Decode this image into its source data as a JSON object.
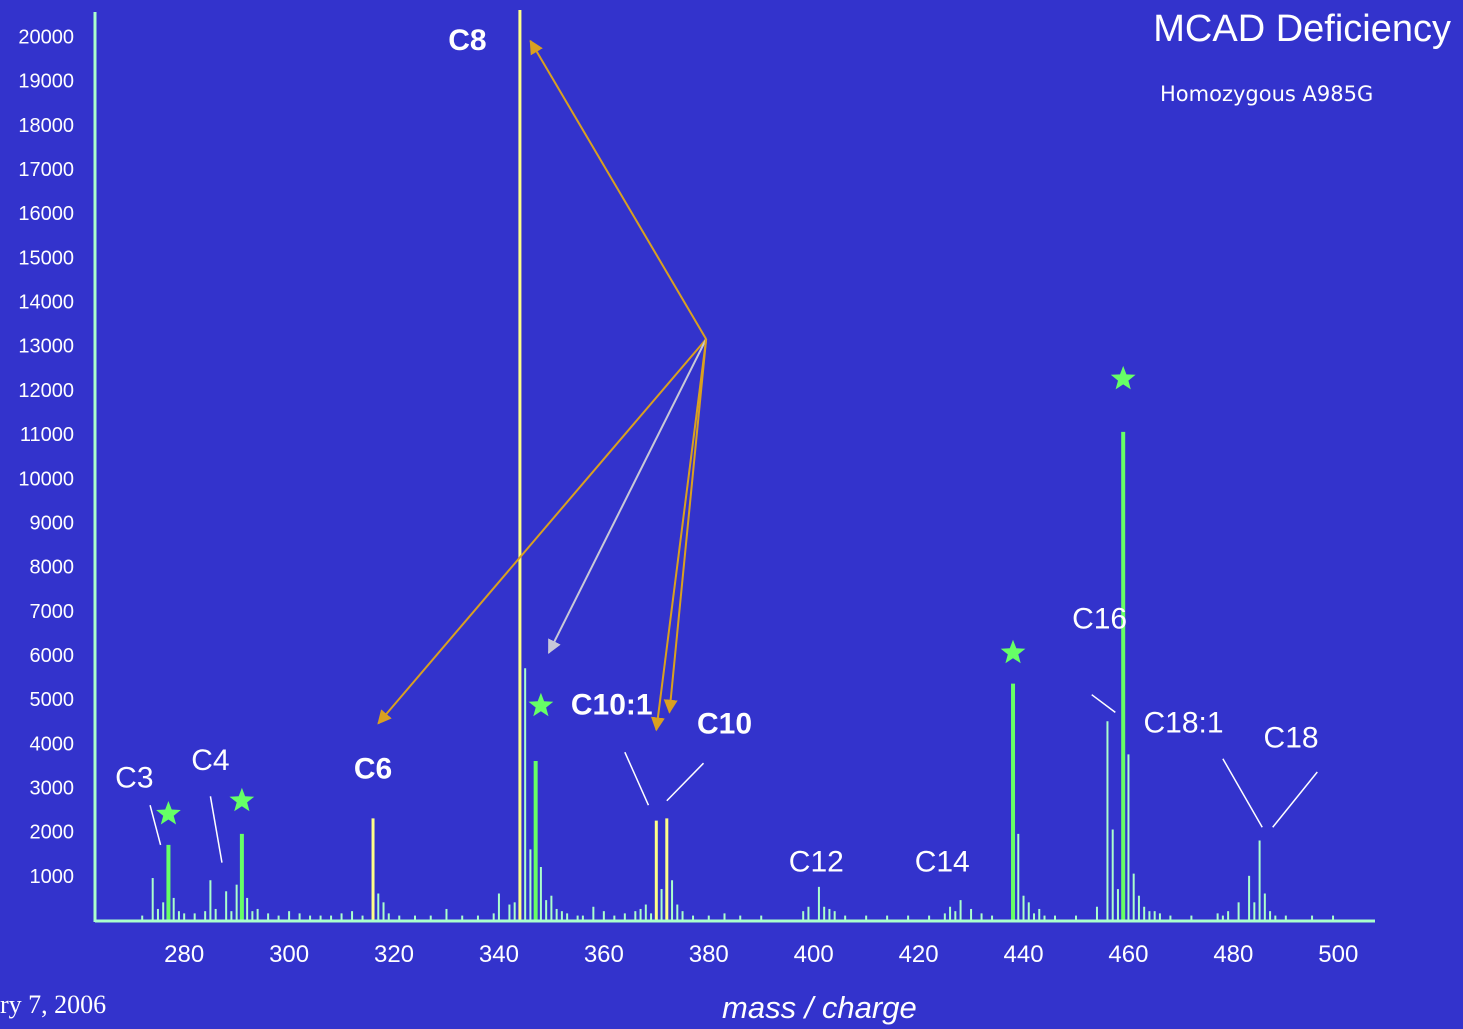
{
  "title": "MCAD Deficiency",
  "subtitle": "Homozygous A985G",
  "footer_text": "ry 7, 2006",
  "colors": {
    "background": "#3333cc",
    "axis": "#aaffcc",
    "baseline_peaks": "#aaffcc",
    "standard_peaks": "#66ff66",
    "acylcarnitine_peaks": "#ffff88",
    "arrow_orange": "#d9a020",
    "arrow_gray": "#c8c8d8",
    "star": "#66ff66"
  },
  "chart_data": {
    "type": "bar",
    "xlabel": "mass / charge",
    "ylabel": "",
    "xlim": [
      263,
      507
    ],
    "ylim": [
      0,
      20600
    ],
    "x_ticks": [
      280,
      300,
      320,
      340,
      360,
      380,
      400,
      420,
      440,
      460,
      480,
      500
    ],
    "y_ticks": [
      1000,
      2000,
      3000,
      4000,
      5000,
      6000,
      7000,
      8000,
      9000,
      10000,
      11000,
      12000,
      13000,
      14000,
      15000,
      16000,
      17000,
      18000,
      19000,
      20000
    ],
    "series": [
      {
        "kind": "acylcarnitine",
        "peaks": [
          {
            "mz": 316,
            "intensity": 2300
          },
          {
            "mz": 344,
            "intensity": 20600
          },
          {
            "mz": 370,
            "intensity": 2250
          },
          {
            "mz": 372,
            "intensity": 2300
          }
        ]
      },
      {
        "kind": "standard",
        "peaks": [
          {
            "mz": 277,
            "intensity": 1700
          },
          {
            "mz": 291,
            "intensity": 1950
          },
          {
            "mz": 347,
            "intensity": 3600
          },
          {
            "mz": 438,
            "intensity": 5350
          },
          {
            "mz": 459,
            "intensity": 11050
          }
        ]
      },
      {
        "kind": "baseline",
        "peaks": [
          {
            "mz": 272,
            "intensity": 100
          },
          {
            "mz": 274,
            "intensity": 950
          },
          {
            "mz": 275,
            "intensity": 250
          },
          {
            "mz": 276,
            "intensity": 400
          },
          {
            "mz": 278,
            "intensity": 500
          },
          {
            "mz": 279,
            "intensity": 200
          },
          {
            "mz": 280,
            "intensity": 150
          },
          {
            "mz": 282,
            "intensity": 150
          },
          {
            "mz": 284,
            "intensity": 200
          },
          {
            "mz": 285,
            "intensity": 900
          },
          {
            "mz": 286,
            "intensity": 250
          },
          {
            "mz": 288,
            "intensity": 650
          },
          {
            "mz": 289,
            "intensity": 200
          },
          {
            "mz": 290,
            "intensity": 800
          },
          {
            "mz": 292,
            "intensity": 500
          },
          {
            "mz": 293,
            "intensity": 200
          },
          {
            "mz": 294,
            "intensity": 250
          },
          {
            "mz": 296,
            "intensity": 150
          },
          {
            "mz": 298,
            "intensity": 100
          },
          {
            "mz": 300,
            "intensity": 200
          },
          {
            "mz": 302,
            "intensity": 150
          },
          {
            "mz": 304,
            "intensity": 100
          },
          {
            "mz": 306,
            "intensity": 100
          },
          {
            "mz": 308,
            "intensity": 100
          },
          {
            "mz": 310,
            "intensity": 150
          },
          {
            "mz": 312,
            "intensity": 200
          },
          {
            "mz": 314,
            "intensity": 100
          },
          {
            "mz": 317,
            "intensity": 600
          },
          {
            "mz": 318,
            "intensity": 400
          },
          {
            "mz": 319,
            "intensity": 150
          },
          {
            "mz": 321,
            "intensity": 100
          },
          {
            "mz": 324,
            "intensity": 100
          },
          {
            "mz": 327,
            "intensity": 100
          },
          {
            "mz": 330,
            "intensity": 250
          },
          {
            "mz": 333,
            "intensity": 100
          },
          {
            "mz": 336,
            "intensity": 100
          },
          {
            "mz": 339,
            "intensity": 150
          },
          {
            "mz": 340,
            "intensity": 600
          },
          {
            "mz": 342,
            "intensity": 350
          },
          {
            "mz": 343,
            "intensity": 400
          },
          {
            "mz": 345,
            "intensity": 5700
          },
          {
            "mz": 346,
            "intensity": 1600
          },
          {
            "mz": 348,
            "intensity": 1200
          },
          {
            "mz": 349,
            "intensity": 450
          },
          {
            "mz": 350,
            "intensity": 550
          },
          {
            "mz": 351,
            "intensity": 250
          },
          {
            "mz": 352,
            "intensity": 200
          },
          {
            "mz": 353,
            "intensity": 150
          },
          {
            "mz": 355,
            "intensity": 100
          },
          {
            "mz": 356,
            "intensity": 100
          },
          {
            "mz": 358,
            "intensity": 300
          },
          {
            "mz": 360,
            "intensity": 200
          },
          {
            "mz": 362,
            "intensity": 100
          },
          {
            "mz": 364,
            "intensity": 150
          },
          {
            "mz": 366,
            "intensity": 200
          },
          {
            "mz": 367,
            "intensity": 250
          },
          {
            "mz": 368,
            "intensity": 350
          },
          {
            "mz": 369,
            "intensity": 150
          },
          {
            "mz": 371,
            "intensity": 700
          },
          {
            "mz": 373,
            "intensity": 900
          },
          {
            "mz": 374,
            "intensity": 350
          },
          {
            "mz": 375,
            "intensity": 200
          },
          {
            "mz": 377,
            "intensity": 100
          },
          {
            "mz": 380,
            "intensity": 100
          },
          {
            "mz": 383,
            "intensity": 150
          },
          {
            "mz": 386,
            "intensity": 100
          },
          {
            "mz": 390,
            "intensity": 100
          },
          {
            "mz": 398,
            "intensity": 200
          },
          {
            "mz": 399,
            "intensity": 300
          },
          {
            "mz": 401,
            "intensity": 750
          },
          {
            "mz": 402,
            "intensity": 300
          },
          {
            "mz": 403,
            "intensity": 250
          },
          {
            "mz": 404,
            "intensity": 200
          },
          {
            "mz": 406,
            "intensity": 100
          },
          {
            "mz": 410,
            "intensity": 100
          },
          {
            "mz": 414,
            "intensity": 100
          },
          {
            "mz": 418,
            "intensity": 100
          },
          {
            "mz": 422,
            "intensity": 100
          },
          {
            "mz": 425,
            "intensity": 150
          },
          {
            "mz": 426,
            "intensity": 300
          },
          {
            "mz": 427,
            "intensity": 200
          },
          {
            "mz": 428,
            "intensity": 450
          },
          {
            "mz": 430,
            "intensity": 250
          },
          {
            "mz": 432,
            "intensity": 150
          },
          {
            "mz": 434,
            "intensity": 100
          },
          {
            "mz": 439,
            "intensity": 1950
          },
          {
            "mz": 440,
            "intensity": 550
          },
          {
            "mz": 441,
            "intensity": 400
          },
          {
            "mz": 442,
            "intensity": 150
          },
          {
            "mz": 443,
            "intensity": 250
          },
          {
            "mz": 444,
            "intensity": 100
          },
          {
            "mz": 446,
            "intensity": 100
          },
          {
            "mz": 450,
            "intensity": 100
          },
          {
            "mz": 454,
            "intensity": 300
          },
          {
            "mz": 456,
            "intensity": 4500
          },
          {
            "mz": 457,
            "intensity": 2050
          },
          {
            "mz": 458,
            "intensity": 700
          },
          {
            "mz": 460,
            "intensity": 3750
          },
          {
            "mz": 461,
            "intensity": 1050
          },
          {
            "mz": 462,
            "intensity": 550
          },
          {
            "mz": 463,
            "intensity": 300
          },
          {
            "mz": 464,
            "intensity": 200
          },
          {
            "mz": 465,
            "intensity": 200
          },
          {
            "mz": 466,
            "intensity": 150
          },
          {
            "mz": 468,
            "intensity": 100
          },
          {
            "mz": 472,
            "intensity": 100
          },
          {
            "mz": 477,
            "intensity": 150
          },
          {
            "mz": 478,
            "intensity": 100
          },
          {
            "mz": 479,
            "intensity": 200
          },
          {
            "mz": 481,
            "intensity": 400
          },
          {
            "mz": 483,
            "intensity": 1000
          },
          {
            "mz": 484,
            "intensity": 400
          },
          {
            "mz": 485,
            "intensity": 1800
          },
          {
            "mz": 486,
            "intensity": 600
          },
          {
            "mz": 487,
            "intensity": 200
          },
          {
            "mz": 488,
            "intensity": 100
          },
          {
            "mz": 490,
            "intensity": 100
          },
          {
            "mz": 495,
            "intensity": 100
          },
          {
            "mz": 499,
            "intensity": 100
          }
        ]
      }
    ],
    "annotations": [
      {
        "text": "C3",
        "mz": 270.5,
        "y": 3000,
        "bold": false,
        "size": 30,
        "leader": [
          [
            273.5,
            2600
          ],
          [
            275.5,
            1700
          ]
        ]
      },
      {
        "text": "C4",
        "mz": 285,
        "y": 3400,
        "bold": false,
        "size": 30,
        "leader": [
          [
            285,
            2800
          ],
          [
            287.2,
            1300
          ]
        ]
      },
      {
        "text": "C6",
        "mz": 316,
        "y": 3200,
        "bold": true,
        "size": 30
      },
      {
        "text": "C8",
        "mz": 334,
        "y": 19700,
        "bold": true,
        "size": 30
      },
      {
        "text": "C10:1",
        "mz": 361.5,
        "y": 4650,
        "bold": true,
        "size": 30,
        "leader": [
          [
            364,
            3800
          ],
          [
            368.5,
            2600
          ]
        ]
      },
      {
        "text": "C10",
        "mz": 383,
        "y": 4220,
        "bold": true,
        "size": 30,
        "leader": [
          [
            379,
            3550
          ],
          [
            372,
            2700
          ]
        ]
      },
      {
        "text": "C12",
        "mz": 400.5,
        "y": 1100,
        "bold": false,
        "size": 30
      },
      {
        "text": "C14",
        "mz": 424.5,
        "y": 1100,
        "bold": false,
        "size": 30
      },
      {
        "text": "C16",
        "mz": 454.5,
        "y": 6600,
        "bold": false,
        "size": 30,
        "leader": [
          [
            453,
            5100
          ],
          [
            457.5,
            4700
          ]
        ]
      },
      {
        "text": "C18:1",
        "mz": 470.5,
        "y": 4250,
        "bold": false,
        "size": 30,
        "leader": [
          [
            478,
            3650
          ],
          [
            485.5,
            2100
          ]
        ]
      },
      {
        "text": "C18",
        "mz": 491,
        "y": 3900,
        "bold": false,
        "size": 30,
        "leader": [
          [
            496,
            3350
          ],
          [
            487.5,
            2100
          ]
        ]
      }
    ],
    "stars": [
      {
        "mz": 277,
        "intensity": 2400
      },
      {
        "mz": 291,
        "intensity": 2700
      },
      {
        "mz": 348,
        "intensity": 4850
      },
      {
        "mz": 438,
        "intensity": 6050
      },
      {
        "mz": 459,
        "intensity": 12250
      }
    ],
    "arrows": {
      "origin": {
        "mz": 379.5,
        "intensity": 13150
      },
      "targets": [
        {
          "mz": 346,
          "intensity": 19900,
          "color": "orange"
        },
        {
          "mz": 317,
          "intensity": 4450,
          "color": "orange"
        },
        {
          "mz": 349.5,
          "intensity": 6050,
          "color": "gray"
        },
        {
          "mz": 370,
          "intensity": 4300,
          "color": "orange"
        },
        {
          "mz": 372.5,
          "intensity": 4700,
          "color": "orange"
        }
      ]
    }
  }
}
